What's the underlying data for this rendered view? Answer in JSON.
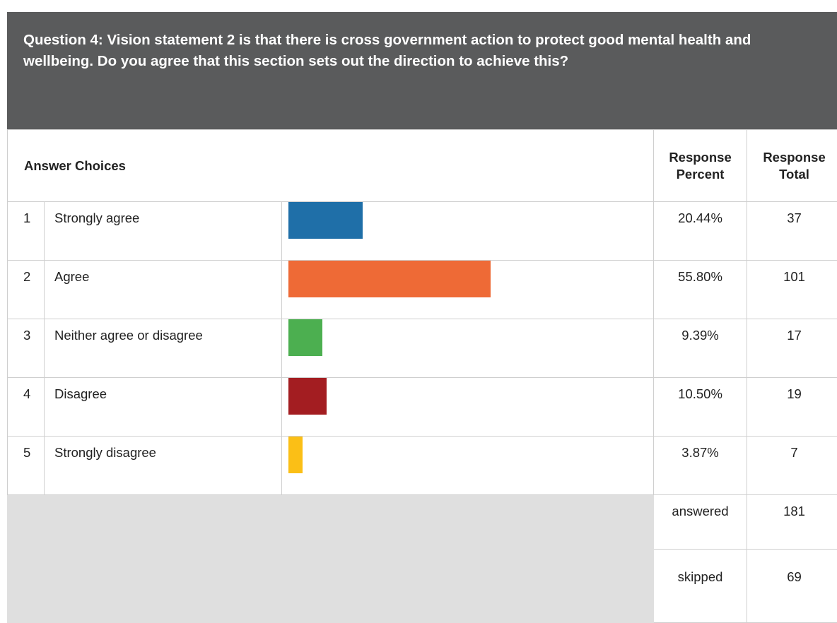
{
  "question": {
    "title": "Question 4: Vision statement 2 is that there is cross government action to protect good mental health and wellbeing. Do you agree that this section sets out the direction to achieve this?"
  },
  "table": {
    "answer_choices_header": "Answer Choices",
    "percent_header_line1": "Response",
    "percent_header_line2": "Percent",
    "total_header_line1": "Response",
    "total_header_line2": "Total"
  },
  "chart_data": {
    "type": "bar",
    "orientation": "horizontal",
    "categories": [
      "Strongly agree",
      "Agree",
      "Neither agree or disagree",
      "Disagree",
      "Strongly disagree"
    ],
    "row_numbers": [
      "1",
      "2",
      "3",
      "4",
      "5"
    ],
    "values": [
      20.44,
      55.8,
      9.39,
      10.5,
      3.87
    ],
    "percent_labels": [
      "20.44%",
      "55.80%",
      "9.39%",
      "10.50%",
      "3.87%"
    ],
    "totals": [
      "37",
      "101",
      "17",
      "19",
      "7"
    ],
    "colors": [
      "#1f6fa8",
      "#ee6a36",
      "#4caf50",
      "#a31d21",
      "#fbbf16"
    ],
    "xlim": [
      0,
      100
    ]
  },
  "summary": {
    "answered_label": "answered",
    "answered_value": "181",
    "skipped_label": "skipped",
    "skipped_value": "69"
  }
}
